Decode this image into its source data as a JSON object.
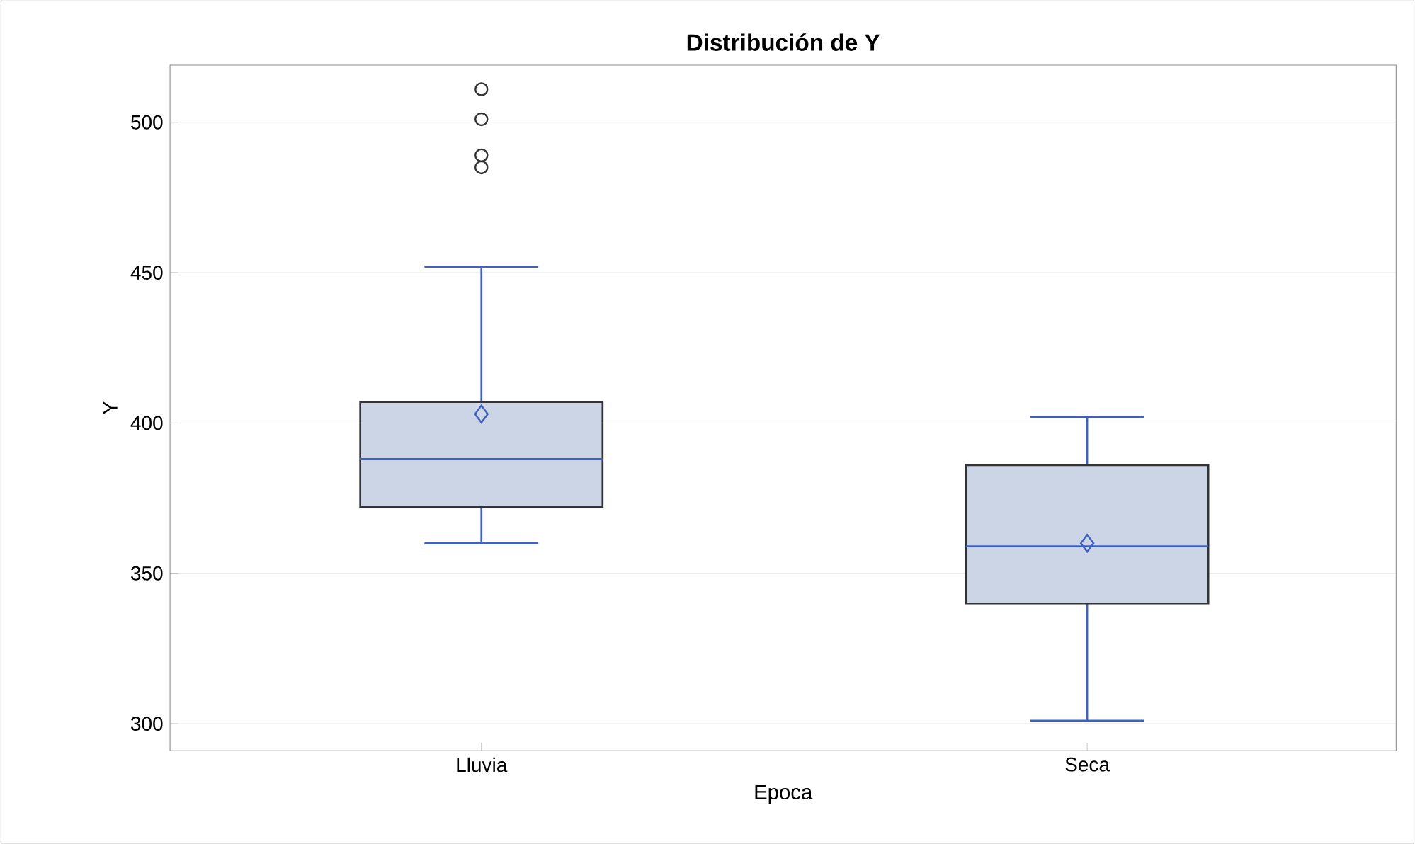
{
  "chart_data": {
    "type": "box",
    "title": "Distribución de Y",
    "xlabel": "Epoca",
    "ylabel": "Y",
    "categories": [
      "Lluvia",
      "Seca"
    ],
    "series": [
      {
        "color": "#cbd5e6",
        "boxes": [
          {
            "low": 360,
            "q1": 372,
            "median": 388,
            "q3": 407,
            "high": 452,
            "mean": 403,
            "outliers": [
              485,
              489,
              501,
              511
            ]
          },
          {
            "low": 301,
            "q1": 340,
            "median": 359,
            "q3": 386,
            "high": 402,
            "mean": 360
          }
        ]
      }
    ],
    "ylim": [
      291,
      519
    ],
    "yticks": [
      300,
      350,
      400,
      450,
      500
    ],
    "grid": "y"
  }
}
